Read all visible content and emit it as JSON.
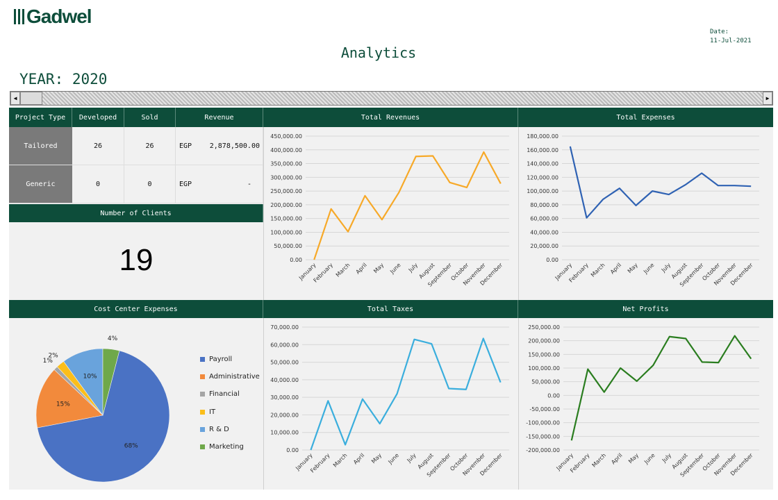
{
  "header": {
    "logo_text": "Gadwel",
    "date_label": "Date:",
    "date_value": "11-Jul-2021",
    "title": "Analytics",
    "year_label": "YEAR: 2020"
  },
  "scrollbar": {
    "left_arrow": "◀",
    "right_arrow": "▶"
  },
  "table": {
    "headers": [
      "Project Type",
      "Developed",
      "Sold",
      "Revenue"
    ],
    "rows": [
      {
        "type": "Tailored",
        "developed": "26",
        "sold": "26",
        "currency": "EGP",
        "revenue": "2,878,500.00"
      },
      {
        "type": "Generic",
        "developed": "0",
        "sold": "0",
        "currency": "EGP",
        "revenue": "-"
      }
    ]
  },
  "clients": {
    "title": "Number of Clients",
    "value": "19"
  },
  "colors": {
    "header_green": "#0d4d3a",
    "revenue": "#f7a928",
    "expenses": "#2f62b3",
    "taxes": "#3aaedd",
    "profits": "#2a7d1f"
  },
  "chart_data": [
    {
      "type": "line",
      "title": "Total Revenues",
      "categories": [
        "January",
        "February",
        "March",
        "April",
        "May",
        "June",
        "July",
        "August",
        "September",
        "October",
        "November",
        "December"
      ],
      "values": [
        0,
        185000,
        102000,
        233000,
        146000,
        245000,
        376000,
        378000,
        281000,
        263000,
        392000,
        277000
      ],
      "ylim": [
        0,
        450000
      ],
      "ystep": 50000,
      "yticks": [
        "0.00",
        "50,000.00",
        "100,000.00",
        "150,000.00",
        "200,000.00",
        "250,000.00",
        "300,000.00",
        "350,000.00",
        "400,000.00",
        "450,000.00"
      ],
      "color": "#f7a928"
    },
    {
      "type": "line",
      "title": "Total Expenses",
      "categories": [
        "January",
        "February",
        "March",
        "April",
        "May",
        "June",
        "July",
        "August",
        "September",
        "October",
        "November",
        "December"
      ],
      "values": [
        165000,
        61000,
        88000,
        104000,
        79000,
        100000,
        95000,
        109000,
        126000,
        108000,
        108000,
        107000
      ],
      "ylim": [
        0,
        180000
      ],
      "ystep": 20000,
      "yticks": [
        "0.00",
        "20,000.00",
        "40,000.00",
        "60,000.00",
        "80,000.00",
        "100,000.00",
        "120,000.00",
        "140,000.00",
        "160,000.00",
        "180,000.00"
      ],
      "color": "#2f62b3"
    },
    {
      "type": "pie",
      "title": "Cost Center Expenses",
      "labels": [
        "Payroll",
        "Administrative",
        "Financial",
        "IT",
        "R & D",
        "Marketing"
      ],
      "values": [
        68,
        15,
        1,
        2,
        10,
        4
      ],
      "value_labels": [
        "68%",
        "15%",
        "1%",
        "2%",
        "10%",
        "4%"
      ],
      "colors": [
        "#4a72c4",
        "#f28a3c",
        "#a5a5a5",
        "#fbbe1a",
        "#69a3dc",
        "#6fa84a"
      ]
    },
    {
      "type": "line",
      "title": "Total Taxes",
      "categories": [
        "January",
        "February",
        "March",
        "April",
        "May",
        "June",
        "July",
        "August",
        "September",
        "October",
        "November",
        "December"
      ],
      "values": [
        0,
        28000,
        3000,
        29000,
        15000,
        32000,
        63000,
        60500,
        35000,
        34500,
        63500,
        38500
      ],
      "ylim": [
        0,
        70000
      ],
      "ystep": 10000,
      "yticks": [
        "0.00",
        "10,000.00",
        "20,000.00",
        "30,000.00",
        "40,000.00",
        "50,000.00",
        "60,000.00",
        "70,000.00"
      ],
      "color": "#3aaedd"
    },
    {
      "type": "line",
      "title": "Net Profits",
      "categories": [
        "January",
        "February",
        "March",
        "April",
        "May",
        "June",
        "July",
        "August",
        "September",
        "October",
        "November",
        "December"
      ],
      "values": [
        -165000,
        96000,
        12000,
        100000,
        52000,
        110000,
        215000,
        208000,
        122000,
        120000,
        218000,
        134000
      ],
      "ylim": [
        -200000,
        250000
      ],
      "ystep": 50000,
      "yticks": [
        "-200,000.00",
        "-150,000.00",
        "-100,000.00",
        "-50,000.00",
        "0.00",
        "50,000.00",
        "100,000.00",
        "150,000.00",
        "200,000.00",
        "250,000.00"
      ],
      "color": "#2a7d1f"
    }
  ]
}
